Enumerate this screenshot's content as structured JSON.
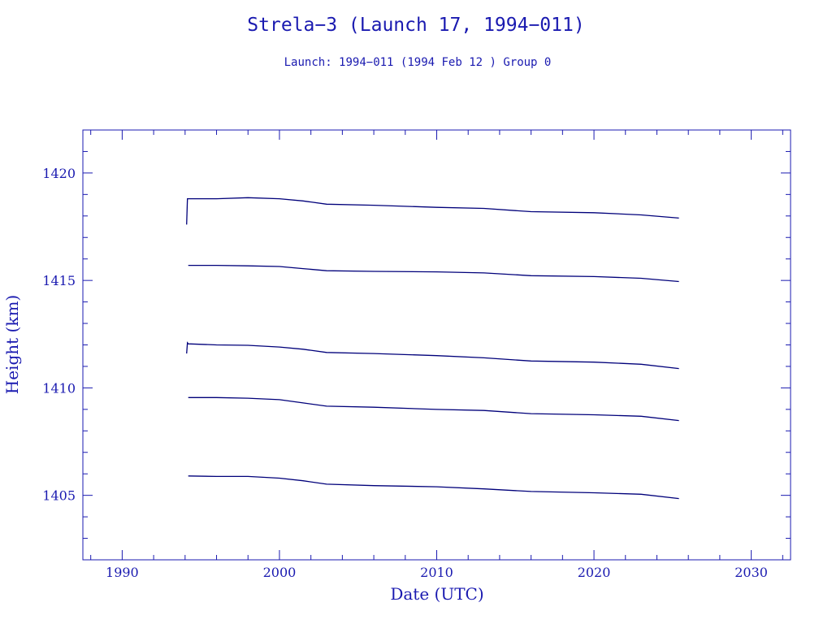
{
  "chart_data": {
    "type": "line",
    "title": "Strela−3 (Launch 17, 1994−011)",
    "subtitle": "Launch: 1994−011  (1994 Feb 12 )  Group 0",
    "xlabel": "Date (UTC)",
    "ylabel": "Height (km)",
    "xlim": [
      1987.5,
      2032.5
    ],
    "ylim": [
      1402,
      1422
    ],
    "x_ticks": [
      1990,
      2000,
      2010,
      2020,
      2030
    ],
    "x_tick_labels": [
      "1990",
      "2000",
      "2010",
      "2020",
      "2030"
    ],
    "y_ticks": [
      1405,
      1410,
      1415,
      1420
    ],
    "y_tick_labels": [
      "1405",
      "1410",
      "1415",
      "1420"
    ],
    "grid": false,
    "colors": {
      "axis": "#1a1ab0",
      "line": "#00007a"
    },
    "series": [
      {
        "x": [
          1994.1,
          1994.15,
          1994.2,
          1996,
          1998,
          2000,
          2001.5,
          2003,
          2006,
          2010,
          2013,
          2016,
          2020,
          2023,
          2025.4
        ],
        "y": [
          1417.6,
          1418.8,
          1418.8,
          1418.8,
          1418.85,
          1418.8,
          1418.7,
          1418.55,
          1418.5,
          1418.4,
          1418.35,
          1418.2,
          1418.15,
          1418.05,
          1417.9
        ]
      },
      {
        "x": [
          1994.2,
          1996,
          1998,
          2000,
          2001.5,
          2003,
          2006,
          2010,
          2013,
          2016,
          2020,
          2023,
          2025.4
        ],
        "y": [
          1415.7,
          1415.7,
          1415.68,
          1415.65,
          1415.55,
          1415.45,
          1415.42,
          1415.4,
          1415.35,
          1415.22,
          1415.18,
          1415.1,
          1414.95
        ]
      },
      {
        "x": [
          1994.1,
          1994.15,
          1994.2,
          1996,
          1998,
          2000,
          2001.5,
          2003,
          2006,
          2010,
          2013,
          2016,
          2020,
          2023,
          2025.4
        ],
        "y": [
          1411.6,
          1412.1,
          1412.05,
          1412.0,
          1411.98,
          1411.9,
          1411.8,
          1411.65,
          1411.6,
          1411.5,
          1411.4,
          1411.25,
          1411.2,
          1411.1,
          1410.9
        ]
      },
      {
        "x": [
          1994.2,
          1996,
          1998,
          2000,
          2001.5,
          2003,
          2006,
          2010,
          2013,
          2016,
          2020,
          2023,
          2025.4
        ],
        "y": [
          1409.55,
          1409.55,
          1409.52,
          1409.45,
          1409.3,
          1409.15,
          1409.1,
          1409.0,
          1408.95,
          1408.8,
          1408.75,
          1408.68,
          1408.48
        ]
      },
      {
        "x": [
          1994.2,
          1996,
          1998,
          2000,
          2001.5,
          2003,
          2006,
          2010,
          2013,
          2016,
          2020,
          2023,
          2025.4
        ],
        "y": [
          1405.9,
          1405.88,
          1405.88,
          1405.8,
          1405.68,
          1405.52,
          1405.45,
          1405.4,
          1405.3,
          1405.18,
          1405.12,
          1405.05,
          1404.85
        ]
      }
    ]
  }
}
